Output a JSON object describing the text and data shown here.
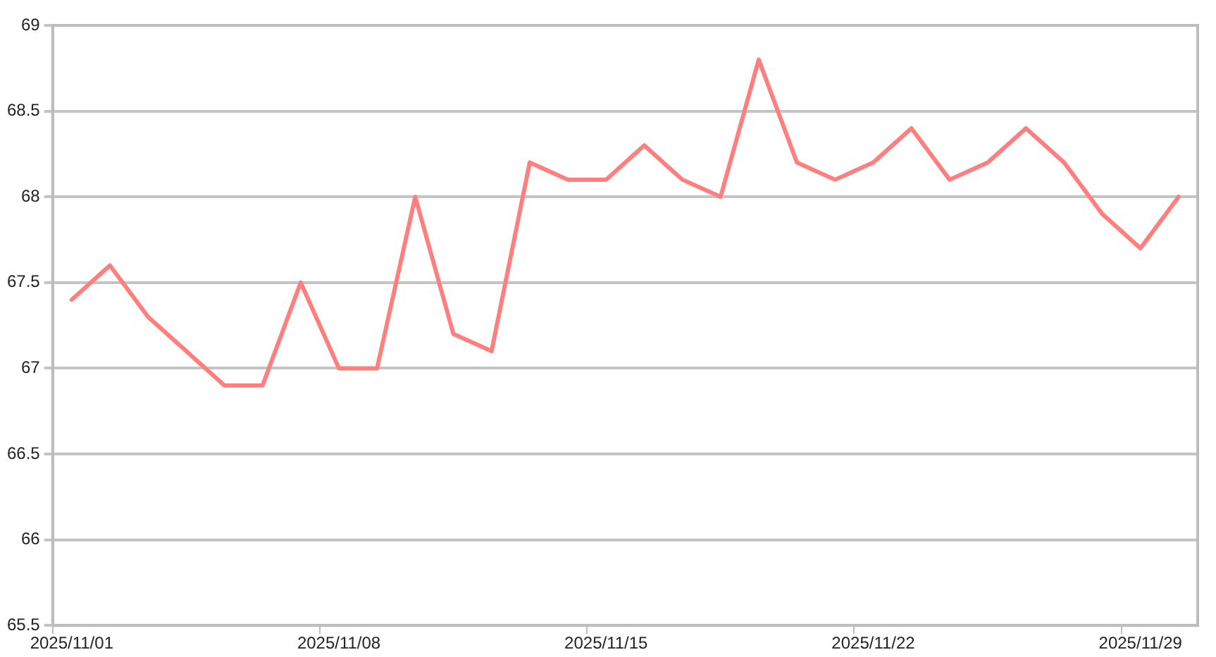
{
  "chart_data": {
    "type": "line",
    "categories": [
      "2025/11/01",
      null,
      null,
      null,
      null,
      null,
      null,
      "2025/11/08",
      null,
      null,
      null,
      null,
      null,
      null,
      "2025/11/15",
      null,
      null,
      null,
      null,
      null,
      null,
      "2025/11/22",
      null,
      null,
      null,
      null,
      null,
      null,
      "2025/11/29",
      null
    ],
    "series": [
      {
        "color": "#ff7f7f",
        "values": [
          67.4,
          67.6,
          67.3,
          67.1,
          66.9,
          66.9,
          67.5,
          67.0,
          67.0,
          68.0,
          67.2,
          67.1,
          68.2,
          68.1,
          68.1,
          68.3,
          68.1,
          68.0,
          68.8,
          68.2,
          68.1,
          68.2,
          68.4,
          68.1,
          68.2,
          68.4,
          68.2,
          67.9,
          67.7,
          68.0
        ]
      }
    ],
    "ylim": [
      65.5,
      69
    ],
    "yticks": [
      65.5,
      66,
      66.5,
      67,
      67.5,
      68,
      68.5,
      69
    ],
    "grid": "y",
    "legend": false,
    "marker": "none",
    "line_style": "solid"
  }
}
